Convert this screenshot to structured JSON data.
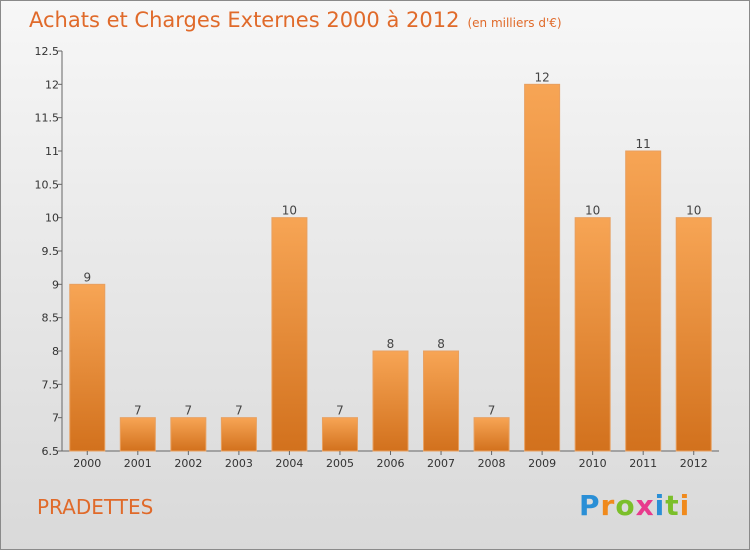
{
  "chart_data": {
    "type": "bar",
    "title": "Achats et Charges Externes 2000 à 2012",
    "subtitle": "(en milliers d'€)",
    "categories": [
      "2000",
      "2001",
      "2002",
      "2003",
      "2004",
      "2005",
      "2006",
      "2007",
      "2008",
      "2009",
      "2010",
      "2011",
      "2012"
    ],
    "values": [
      9,
      7,
      7,
      7,
      10,
      7,
      8,
      8,
      7,
      12,
      10,
      11,
      10
    ],
    "data_labels": [
      "9",
      "7",
      "7",
      "7",
      "10",
      "7",
      "8",
      "8",
      "7",
      "12",
      "10",
      "11",
      "10"
    ],
    "ylim": [
      6.5,
      12.5
    ],
    "yticks": [
      6.5,
      7,
      7.5,
      8,
      8.5,
      9,
      9.5,
      10,
      10.5,
      11,
      11.5,
      12,
      12.5
    ],
    "ytick_labels": [
      "6.5",
      "7",
      "7.5",
      "8",
      "8.5",
      "9",
      "9.5",
      "10",
      "10.5",
      "11",
      "11.5",
      "12",
      "12.5"
    ],
    "xlabel": "",
    "ylabel": "",
    "grid": false,
    "bar_color_top": "#f7a555",
    "bar_color_bottom": "#d2711d"
  },
  "footer": {
    "commune": "PRADETTES",
    "logo_letters": [
      "P",
      "r",
      "o",
      "x",
      "i",
      "t",
      "i"
    ],
    "logo_colors": [
      "#2a8fd6",
      "#f08a1c",
      "#7bbf2a",
      "#e83a8c",
      "#2a8fd6",
      "#7bbf2a",
      "#f08a1c"
    ]
  }
}
